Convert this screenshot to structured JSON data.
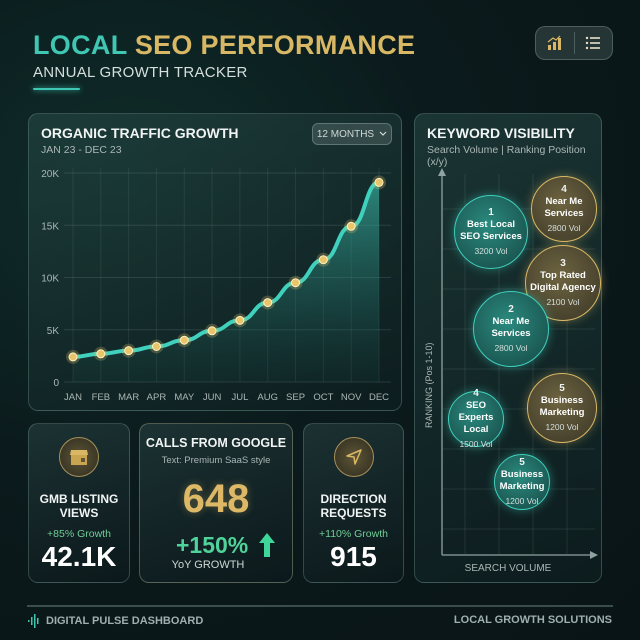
{
  "header": {
    "title_part1": "LOCAL",
    "title_part2": "SEO PERFORMANCE",
    "subtitle": "ANNUAL GROWTH TRACKER",
    "toolbar": [
      {
        "icon": "bar-chart-icon",
        "label": "Chart view"
      },
      {
        "icon": "list-icon",
        "label": "List view"
      }
    ]
  },
  "traffic": {
    "title": "ORGANIC TRAFFIC GROWTH",
    "date_range": "JAN 23 - DEC 23",
    "range_select": "12 MONTHS"
  },
  "chart_data": [
    {
      "type": "line",
      "title": "ORGANIC TRAFFIC GROWTH",
      "subtitle": "JAN 23 - DEC 23",
      "categories": [
        "JAN",
        "FEB",
        "MAR",
        "APR",
        "MAY",
        "JUN",
        "JUL",
        "AUG",
        "SEP",
        "OCT",
        "NOV",
        "DEC"
      ],
      "values": [
        2400,
        2700,
        3000,
        3400,
        4000,
        4900,
        5900,
        7600,
        9500,
        11700,
        14900,
        19100
      ],
      "ytick_labels": [
        "0",
        "5K",
        "10K",
        "15K",
        "20K"
      ],
      "yticks": [
        0,
        5000,
        10000,
        15000,
        20000
      ],
      "ylim": [
        0,
        20000
      ],
      "xlabel": "",
      "ylabel": "",
      "grid": true,
      "colors": {
        "line": "#3fd1bd",
        "markers": "#e8c56a"
      }
    },
    {
      "type": "scatter",
      "title": "KEYWORD VISIBILITY",
      "subtitle": "Search Volume | Ranking Position (x/y)",
      "xlabel": "SEARCH VOLUME",
      "ylabel": "RANKING (Pos 1-10)",
      "grid": true,
      "points": [
        {
          "rank": "1",
          "keyword": "Best Local SEO Services",
          "volume": 3200,
          "style": "teal"
        },
        {
          "rank": "4",
          "keyword": "Near Me Services",
          "volume": 2800,
          "style": "gold"
        },
        {
          "rank": "3",
          "keyword": "Top Rated Digital Agency",
          "volume": 2100,
          "style": "gold"
        },
        {
          "rank": "2",
          "keyword": "Near Me Services",
          "volume": 2800,
          "style": "teal"
        },
        {
          "rank": "5",
          "keyword": "Business Marketing",
          "volume": 1200,
          "style": "gold"
        },
        {
          "rank": "4",
          "keyword": "SEO Experts Local",
          "volume": 1500,
          "style": "teal"
        },
        {
          "rank": "5",
          "keyword": "Business Marketing",
          "volume": 1200,
          "style": "teal"
        }
      ]
    }
  ],
  "keyword": {
    "title": "KEYWORD VISIBILITY",
    "subtitle": "Search Volume | Ranking Position (x/y)",
    "y_axis": "RANKING (Pos 1-10)",
    "x_axis": "SEARCH VOLUME",
    "bubbles": [
      {
        "rank": "1",
        "line1": "Best Local",
        "line2": "SEO Services",
        "vol": "3200 Vol"
      },
      {
        "rank": "4",
        "line1": "Near Me",
        "line2": "Services",
        "vol": "2800 Vol"
      },
      {
        "rank": "3",
        "line1": "Top Rated",
        "line2": "Digital Agency",
        "vol": "2100 Vol"
      },
      {
        "rank": "2",
        "line1": "Near Me",
        "line2": "Services",
        "vol": "2800 Vol"
      },
      {
        "rank": "5",
        "line1": "Business",
        "line2": "Marketing",
        "vol": "1200 Vol"
      },
      {
        "rank": "4",
        "line1": "SEO Experts",
        "line2": "Local",
        "vol": "1500 Vol"
      },
      {
        "rank": "5",
        "line1": "Business",
        "line2": "Marketing",
        "vol": "1200 Vol"
      }
    ]
  },
  "cards": {
    "gmb": {
      "label_line1": "GMB LISTING",
      "label_line2": "VIEWS",
      "growth": "+85% Growth",
      "value": "42.1K"
    },
    "calls": {
      "label": "CALLS FROM GOOGLE",
      "sub": "Text: Premium SaaS style",
      "value": "648",
      "pct": "+150%",
      "yoy": "YoY GROWTH"
    },
    "directions": {
      "label_line1": "DIRECTION",
      "label_line2": "REQUESTS",
      "growth": "+110% Growth",
      "value": "915"
    }
  },
  "footer": {
    "left": "DIGITAL PULSE DASHBOARD",
    "right": "LOCAL GROWTH SOLUTIONS"
  }
}
